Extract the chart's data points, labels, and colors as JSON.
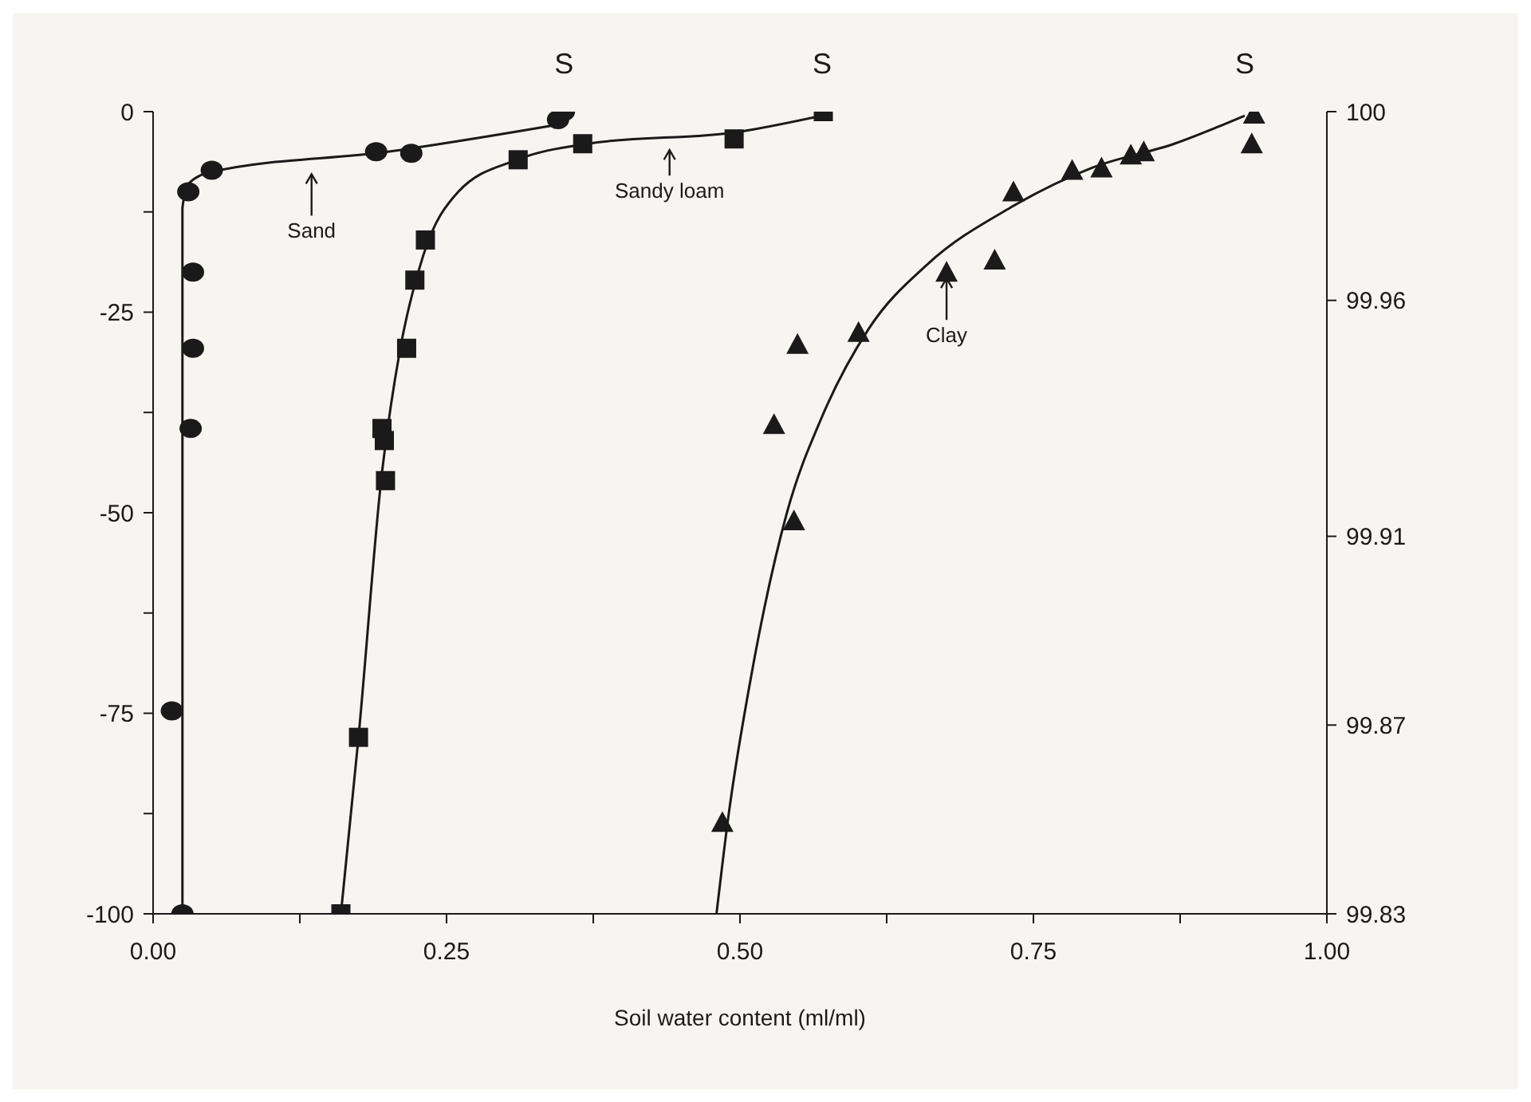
{
  "chart_data": {
    "type": "scatter",
    "xlabel": "Soil water content (ml/ml)",
    "xlim": [
      0,
      1
    ],
    "xticks": [
      {
        "value": 0,
        "label": "0.00"
      },
      {
        "value": 0.125,
        "label": null
      },
      {
        "value": 0.25,
        "label": "0.25"
      },
      {
        "value": 0.375,
        "label": null
      },
      {
        "value": 0.5,
        "label": "0.50"
      },
      {
        "value": 0.625,
        "label": null
      },
      {
        "value": 0.75,
        "label": "0.75"
      },
      {
        "value": 0.875,
        "label": null
      },
      {
        "value": 1,
        "label": "1.00"
      }
    ],
    "ylim": [
      -100,
      0
    ],
    "yticks": [
      -100,
      {
        "value": -87.5,
        "label": null
      },
      -75,
      {
        "value": -62.5,
        "label": null
      },
      -50,
      {
        "value": -37.5,
        "label": null
      },
      -25,
      {
        "value": -12.5,
        "label": null
      },
      0
    ],
    "y2lim": [
      99.83,
      100
    ],
    "y2ticks": [
      99.83,
      99.87,
      99.91,
      99.96,
      100
    ],
    "grid": false,
    "legend": false,
    "series": [
      {
        "marker": "circle",
        "color": "#1a1a1a",
        "x": [
          0.025,
          0.016,
          0.032,
          0.034,
          0.034,
          0.03,
          0.05,
          0.19,
          0.22,
          0.345,
          0.35
        ],
        "values": [
          -100,
          -74.7,
          -39.5,
          -29.5,
          -20,
          -10,
          -7.3,
          -5,
          -5.2,
          -1,
          0
        ]
      },
      {
        "marker": "square",
        "color": "#1a1a1a",
        "x": [
          0.16,
          0.175,
          0.198,
          0.197,
          0.195,
          0.216,
          0.223,
          0.232,
          0.311,
          0.366,
          0.495,
          0.571
        ],
        "values": [
          -100,
          -78,
          -46,
          -41,
          -39.5,
          -29.5,
          -21,
          -16,
          -6,
          -4,
          -3.4,
          0
        ]
      },
      {
        "marker": "triangle",
        "color": "#1a1a1a",
        "x": [
          0.485,
          0.529,
          0.546,
          0.549,
          0.601,
          0.676,
          0.717,
          0.733,
          0.783,
          0.808,
          0.833,
          0.844,
          0.936,
          0.938
        ],
        "values": [
          -88.6,
          -39,
          -51,
          -29,
          -27.5,
          -20,
          -18.5,
          -10,
          -7.3,
          -7,
          -5.4,
          -5,
          -4,
          -0.3
        ]
      },
      {
        "type": "line",
        "marker": "none",
        "color": "#1a1a1a",
        "x": [
          0.025,
          0.025,
          0.03,
          0.05,
          0.2,
          0.35
        ],
        "values": [
          -100,
          -12,
          -9,
          -7.5,
          -5,
          -1.5
        ]
      },
      {
        "type": "line",
        "marker": "none",
        "color": "#1a1a1a",
        "x": [
          0.16,
          0.175,
          0.195,
          0.21,
          0.23,
          0.26,
          0.31,
          0.37,
          0.5,
          0.57
        ],
        "values": [
          -100,
          -78,
          -45,
          -30,
          -18,
          -10,
          -6,
          -4,
          -2.5,
          -0.5
        ]
      },
      {
        "type": "line",
        "marker": "none",
        "color": "#1a1a1a",
        "x": [
          0.48,
          0.49,
          0.51,
          0.54,
          0.57,
          0.61,
          0.66,
          0.73,
          0.8,
          0.87,
          0.93
        ],
        "values": [
          -100,
          -88,
          -70,
          -50,
          -38,
          -27,
          -19,
          -12,
          -7,
          -4,
          -0.5
        ]
      }
    ],
    "annotations": [
      {
        "text": "S",
        "x": 0.35,
        "y": 0
      },
      {
        "text": "S",
        "x": 0.57,
        "y": 0
      },
      {
        "text": "S",
        "x": 0.93,
        "y": 0
      },
      {
        "text": "Sand",
        "x": 0.135,
        "y": -7
      },
      {
        "text": "Sandy loam",
        "x": 0.44,
        "y": -4
      },
      {
        "text": "Clay",
        "x": 0.676,
        "y": -20
      }
    ]
  }
}
